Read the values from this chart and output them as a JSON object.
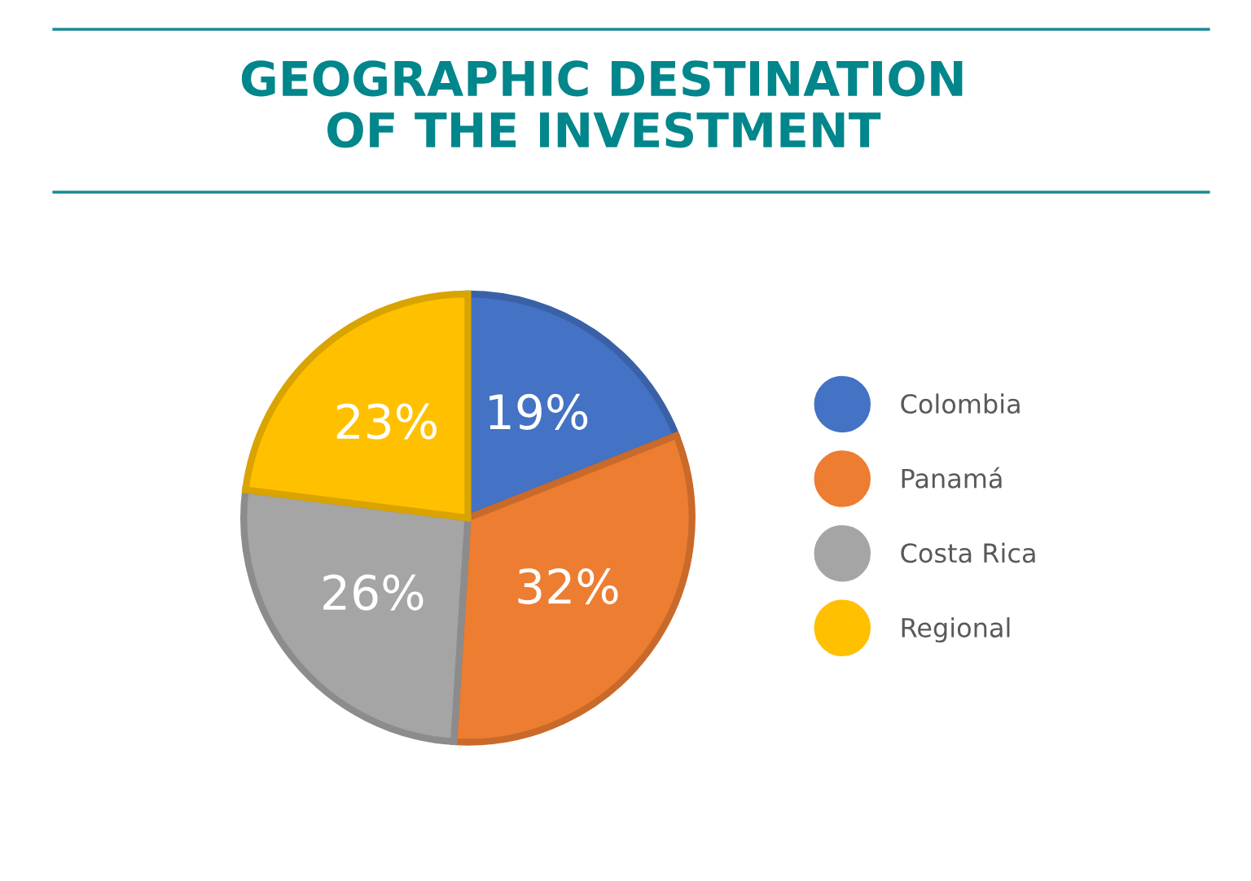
{
  "chart_data": {
    "type": "pie",
    "title": "GEOGRAPHIC DESTINATION\nOF THE INVESTMENT",
    "categories": [
      "Colombia",
      "Panamá",
      "Costa Rica",
      "Regional"
    ],
    "values": [
      19,
      32,
      26,
      23
    ],
    "colors": [
      "#4472c4",
      "#ed7d31",
      "#a5a5a5",
      "#ffc000"
    ],
    "value_labels": [
      "19%",
      "32%",
      "26%",
      "23%"
    ],
    "legend": "right"
  }
}
